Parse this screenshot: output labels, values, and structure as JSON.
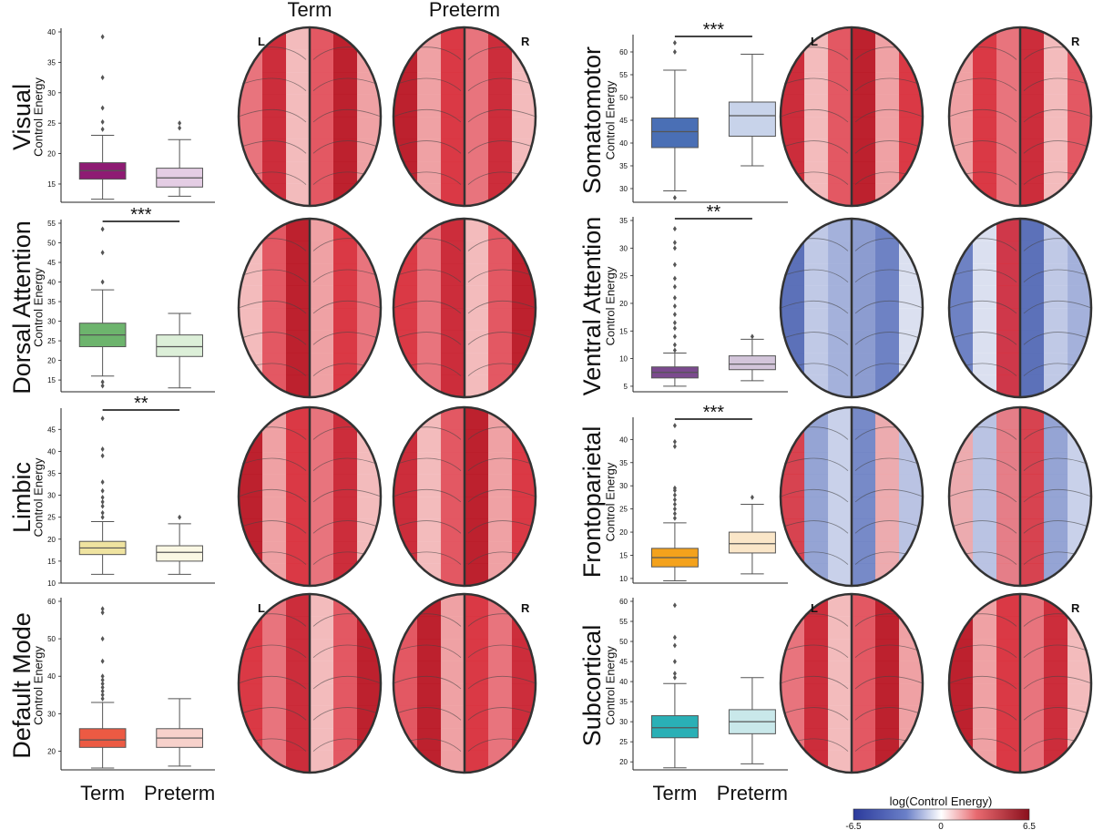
{
  "chart_data": {
    "type": "box",
    "column_headers": [
      "Term",
      "Preterm"
    ],
    "hemisphere_labels": {
      "left": "L",
      "right": "R"
    },
    "x_tick_labels": [
      "Term",
      "Preterm"
    ],
    "y_axis_label": "Control Energy",
    "colorbar": {
      "label": "log(Control Energy)",
      "min": -6.5,
      "mid": 0,
      "max": 6.5,
      "tick_labels": [
        "-6.5",
        "0",
        "6.5"
      ]
    },
    "panels": [
      {
        "network": "Visual",
        "ylim": [
          12,
          40
        ],
        "yticks": [
          15,
          20,
          25,
          30,
          35,
          40
        ],
        "significance": "",
        "colors": [
          "#8e1b73",
          "#e4cde4"
        ],
        "boxes": [
          {
            "group": "Term",
            "whislo": 12.5,
            "q1": 15.8,
            "med": 17.2,
            "q3": 18.5,
            "whishi": 23.0,
            "fliers": [
              24,
              25.2,
              27.5,
              32.5,
              39.2
            ]
          },
          {
            "group": "Preterm",
            "whislo": 13.0,
            "q1": 14.5,
            "med": 16.0,
            "q3": 17.6,
            "whishi": 22.3,
            "fliers": [
              24.2,
              25.0
            ]
          }
        ]
      },
      {
        "network": "Dorsal Attention",
        "ylim": [
          12,
          55
        ],
        "yticks": [
          15,
          20,
          25,
          30,
          35,
          40,
          45,
          50,
          55
        ],
        "significance": "***",
        "colors": [
          "#6db46d",
          "#dcefd8"
        ],
        "boxes": [
          {
            "group": "Term",
            "whislo": 16.0,
            "q1": 23.5,
            "med": 26.5,
            "q3": 29.5,
            "whishi": 38.0,
            "fliers": [
              40,
              47.5,
              53.5,
              13.5,
              14.5
            ]
          },
          {
            "group": "Preterm",
            "whislo": 13.0,
            "q1": 21.0,
            "med": 23.5,
            "q3": 26.5,
            "whishi": 32.0,
            "fliers": []
          }
        ]
      },
      {
        "network": "Limbic",
        "ylim": [
          10,
          49
        ],
        "yticks": [
          10,
          15,
          20,
          25,
          30,
          35,
          40,
          45
        ],
        "significance": "**",
        "colors": [
          "#efe3a0",
          "#fbf8e4"
        ],
        "boxes": [
          {
            "group": "Term",
            "whislo": 12.0,
            "q1": 16.5,
            "med": 18.0,
            "q3": 19.5,
            "whishi": 24.0,
            "fliers": [
              25,
              26,
              27.5,
              28.5,
              29.5,
              31,
              33,
              39,
              40.5,
              47.5
            ]
          },
          {
            "group": "Preterm",
            "whislo": 12.0,
            "q1": 15.0,
            "med": 17.0,
            "q3": 18.5,
            "whishi": 23.5,
            "fliers": [
              25.0
            ]
          }
        ]
      },
      {
        "network": "Default Mode",
        "ylim": [
          15,
          60
        ],
        "yticks": [
          20,
          30,
          40,
          50,
          60
        ],
        "significance": "",
        "colors": [
          "#ec5a43",
          "#f7d1cb"
        ],
        "boxes": [
          {
            "group": "Term",
            "whislo": 15.5,
            "q1": 21.0,
            "med": 23.0,
            "q3": 26.0,
            "whishi": 33.0,
            "fliers": [
              34,
              35,
              36,
              37,
              38,
              39,
              40,
              44,
              50,
              57,
              58
            ]
          },
          {
            "group": "Preterm",
            "whislo": 16.0,
            "q1": 21.0,
            "med": 23.5,
            "q3": 26.0,
            "whishi": 34.0,
            "fliers": []
          }
        ]
      },
      {
        "network": "Somatomotor",
        "ylim": [
          27,
          63
        ],
        "yticks": [
          30,
          35,
          40,
          45,
          50,
          55,
          60
        ],
        "significance": "***",
        "colors": [
          "#4a6fb5",
          "#c8d3ea"
        ],
        "boxes": [
          {
            "group": "Term",
            "whislo": 29.5,
            "q1": 39.0,
            "med": 42.5,
            "q3": 45.5,
            "whishi": 56.0,
            "fliers": [
              28,
              60,
              62
            ]
          },
          {
            "group": "Preterm",
            "whislo": 35.0,
            "q1": 41.5,
            "med": 46.0,
            "q3": 49.0,
            "whishi": 59.5,
            "fliers": []
          }
        ]
      },
      {
        "network": "Ventral Attention",
        "ylim": [
          4,
          35
        ],
        "yticks": [
          5,
          10,
          15,
          20,
          25,
          30,
          35
        ],
        "significance": "**",
        "colors": [
          "#7b4a8e",
          "#d3c5da"
        ],
        "boxes": [
          {
            "group": "Term",
            "whislo": 5.0,
            "q1": 6.5,
            "med": 7.5,
            "q3": 8.5,
            "whishi": 11.0,
            "fliers": [
              11.5,
              12.5,
              14,
              15.5,
              16.5,
              18,
              19.5,
              21,
              23,
              24.5,
              27,
              30,
              31,
              33.5
            ]
          },
          {
            "group": "Preterm",
            "whislo": 6.0,
            "q1": 8.0,
            "med": 9.0,
            "q3": 10.5,
            "whishi": 13.5,
            "fliers": [
              14.0
            ]
          }
        ]
      },
      {
        "network": "Frontoparietal",
        "ylim": [
          9,
          44
        ],
        "yticks": [
          10,
          15,
          20,
          25,
          30,
          35,
          40
        ],
        "significance": "***",
        "colors": [
          "#f4a21c",
          "#fae6c8"
        ],
        "boxes": [
          {
            "group": "Term",
            "whislo": 9.5,
            "q1": 12.5,
            "med": 14.5,
            "q3": 16.5,
            "whishi": 22.0,
            "fliers": [
              23,
              24,
              25,
              26,
              27,
              28,
              29,
              29.5,
              38.5,
              39.5,
              43
            ]
          },
          {
            "group": "Preterm",
            "whislo": 11.0,
            "q1": 15.5,
            "med": 17.5,
            "q3": 20.0,
            "whishi": 26.0,
            "fliers": [
              27.5
            ]
          }
        ]
      },
      {
        "network": "Subcortical",
        "ylim": [
          18,
          60
        ],
        "yticks": [
          20,
          25,
          30,
          35,
          40,
          45,
          50,
          55,
          60
        ],
        "significance": "",
        "colors": [
          "#2ab0b6",
          "#c9e8ea"
        ],
        "boxes": [
          {
            "group": "Term",
            "whislo": 18.5,
            "q1": 26.0,
            "med": 28.5,
            "q3": 31.5,
            "whishi": 39.5,
            "fliers": [
              41,
              42,
              45,
              49,
              51,
              59
            ]
          },
          {
            "group": "Preterm",
            "whislo": 19.5,
            "q1": 27.0,
            "med": 30.0,
            "q3": 33.0,
            "whishi": 41.0,
            "fliers": []
          }
        ]
      }
    ],
    "brain_maps": [
      {
        "network": "Visual",
        "tone": "red"
      },
      {
        "network": "Dorsal Attention",
        "tone": "red"
      },
      {
        "network": "Limbic",
        "tone": "red"
      },
      {
        "network": "Default Mode",
        "tone": "red"
      },
      {
        "network": "Somatomotor",
        "tone": "red"
      },
      {
        "network": "Ventral Attention",
        "tone": "blue"
      },
      {
        "network": "Frontoparietal",
        "tone": "mixed"
      },
      {
        "network": "Subcortical",
        "tone": "red"
      }
    ]
  }
}
